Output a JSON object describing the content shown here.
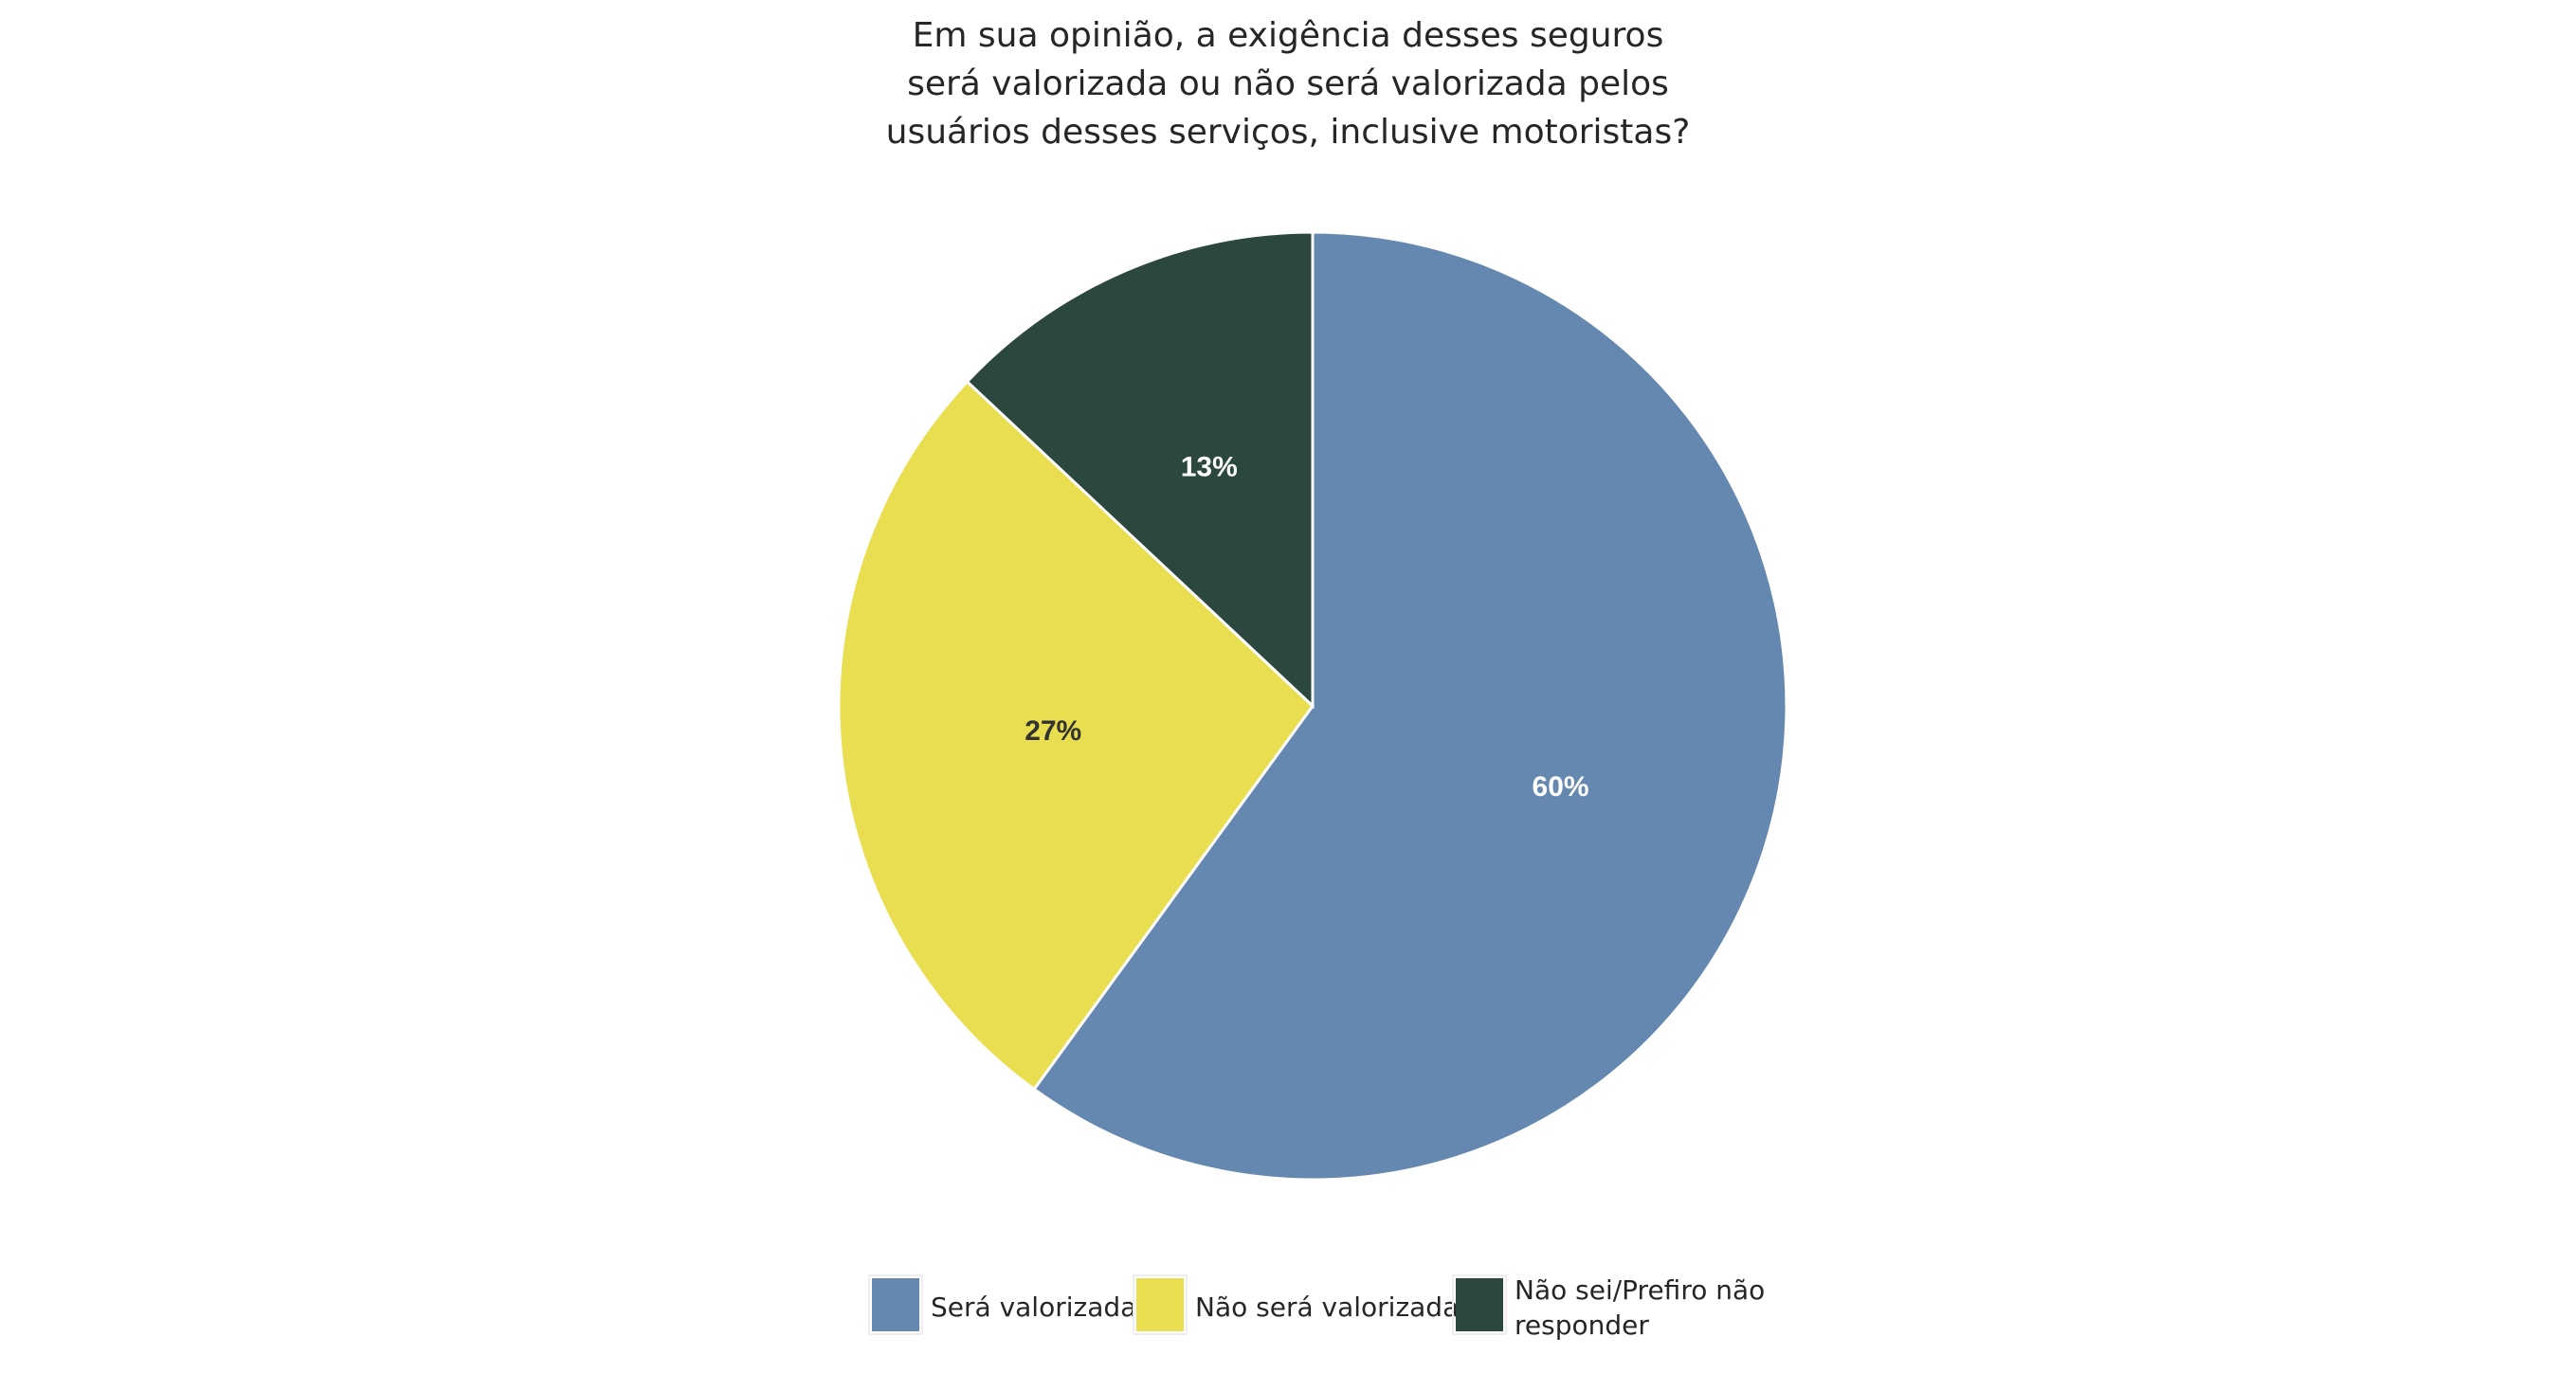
{
  "chart_data": {
    "type": "pie",
    "title_lines": [
      "Em sua opinião, a exigência desses seguros",
      "será valorizada ou não será valorizada pelos",
      "usuários desses serviços, inclusive motoristas?"
    ],
    "slices": [
      {
        "name": "Será valorizada",
        "value": 60,
        "label": "60%",
        "color": "#6588b0",
        "label_color": "#ffffff"
      },
      {
        "name": "Não será valorizada",
        "value": 27,
        "label": "27%",
        "color": "#e8de50",
        "label_color": "#333333"
      },
      {
        "name": "Não sei/Prefiro não responder",
        "value": 13,
        "label": "13%",
        "color": "#2b473e",
        "label_color": "#ffffff"
      }
    ],
    "start_angle": "top",
    "direction": "clockwise",
    "legend_position": "bottom",
    "legend_lines": {
      "2": [
        "Não sei/Prefiro não",
        "responder"
      ]
    }
  }
}
